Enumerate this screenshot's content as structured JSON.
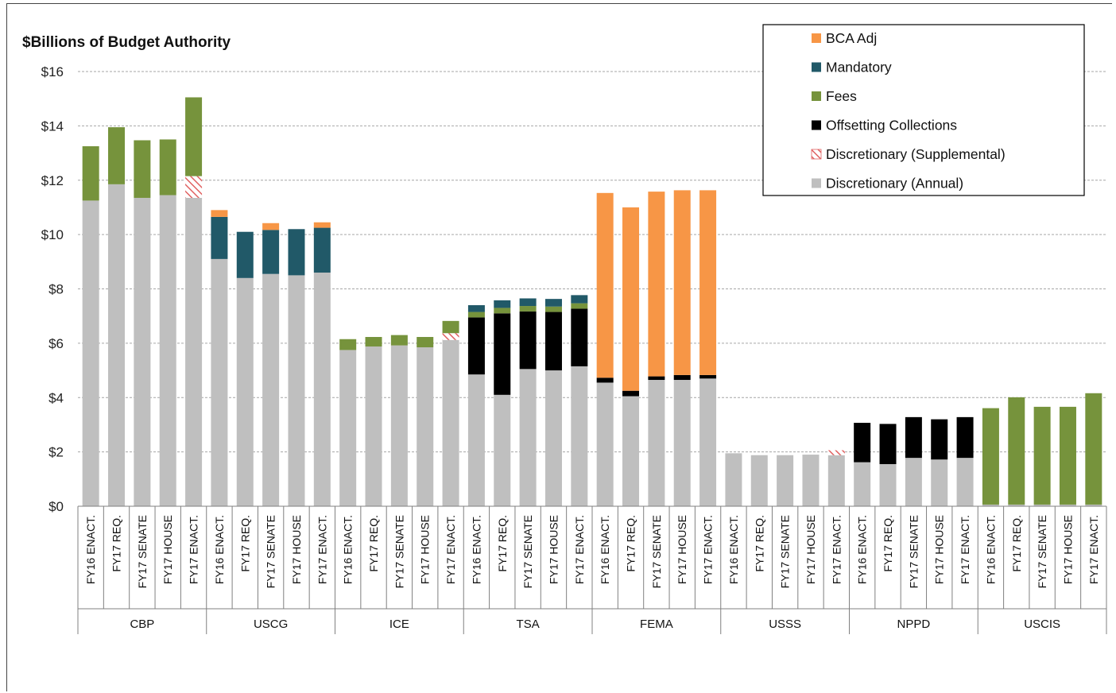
{
  "chart_data": {
    "type": "bar",
    "stacked": true,
    "ylabel": "$Billions of Budget Authority",
    "ylim": [
      0,
      16
    ],
    "yticks": [
      "$0",
      "$2",
      "$4",
      "$6",
      "$8",
      "$10",
      "$12",
      "$14",
      "$16"
    ],
    "grid": true,
    "legend_position": "top-right",
    "group_labels": [
      "CBP",
      "USCG",
      "ICE",
      "TSA",
      "FEMA",
      "USSS",
      "NPPD",
      "USCIS"
    ],
    "sub_categories": [
      "FY16 ENACT.",
      "FY17 REQ.",
      "FY17 SENATE",
      "FY17 HOUSE",
      "FY17 ENACT."
    ],
    "series": [
      {
        "name": "Discretionary (Annual)",
        "color": "#bfbfbf",
        "values": [
          [
            11.25,
            11.85,
            11.35,
            11.45,
            11.35
          ],
          [
            9.1,
            8.4,
            8.55,
            8.5,
            8.6
          ],
          [
            5.75,
            5.88,
            5.92,
            5.85,
            6.12
          ],
          [
            4.85,
            4.1,
            5.05,
            5.0,
            5.15
          ],
          [
            4.55,
            4.05,
            4.65,
            4.65,
            4.7
          ],
          [
            1.95,
            1.88,
            1.88,
            1.9,
            1.88
          ],
          [
            1.62,
            1.55,
            1.78,
            1.72,
            1.78
          ],
          [
            0.06,
            0.06,
            0.06,
            0.06,
            0.06
          ]
        ]
      },
      {
        "name": "Discretionary (Supplemental)",
        "color": "#e06060",
        "pattern": "hatch",
        "values": [
          [
            0,
            0,
            0,
            0,
            0.8
          ],
          [
            0,
            0,
            0,
            0,
            0
          ],
          [
            0,
            0,
            0,
            0,
            0.25
          ],
          [
            0,
            0,
            0,
            0,
            0
          ],
          [
            0,
            0,
            0,
            0,
            0
          ],
          [
            0,
            0,
            0,
            0,
            0.18
          ],
          [
            0,
            0,
            0,
            0,
            0
          ],
          [
            0,
            0,
            0,
            0,
            0
          ]
        ]
      },
      {
        "name": "Offsetting Collections",
        "color": "#000000",
        "values": [
          [
            0,
            0,
            0,
            0,
            0
          ],
          [
            0,
            0,
            0,
            0,
            0
          ],
          [
            0,
            0,
            0,
            0,
            0
          ],
          [
            2.1,
            3.0,
            2.12,
            2.15,
            2.12
          ],
          [
            0.18,
            0.2,
            0.13,
            0.18,
            0.13
          ],
          [
            0,
            0,
            0,
            0,
            0
          ],
          [
            1.45,
            1.48,
            1.5,
            1.48,
            1.5
          ],
          [
            0,
            0,
            0,
            0,
            0
          ]
        ]
      },
      {
        "name": "Fees",
        "color": "#76933c",
        "values": [
          [
            2.0,
            2.1,
            2.12,
            2.05,
            2.9
          ],
          [
            0,
            0,
            0,
            0,
            0
          ],
          [
            0.4,
            0.35,
            0.38,
            0.38,
            0.45
          ],
          [
            0.2,
            0.2,
            0.2,
            0.2,
            0.2
          ],
          [
            0,
            0,
            0,
            0,
            0
          ],
          [
            0,
            0,
            0,
            0,
            0
          ],
          [
            0,
            0,
            0,
            0,
            0
          ],
          [
            3.55,
            3.95,
            3.6,
            3.6,
            4.1
          ]
        ]
      },
      {
        "name": "Mandatory",
        "color": "#215968",
        "values": [
          [
            0,
            0,
            0,
            0,
            0
          ],
          [
            1.55,
            1.7,
            1.62,
            1.7,
            1.65
          ],
          [
            0,
            0,
            0,
            0,
            0
          ],
          [
            0.25,
            0.28,
            0.28,
            0.28,
            0.3
          ],
          [
            0,
            0,
            0,
            0,
            0
          ],
          [
            0,
            0,
            0,
            0,
            0
          ],
          [
            0,
            0,
            0,
            0,
            0
          ],
          [
            0,
            0,
            0,
            0,
            0
          ]
        ]
      },
      {
        "name": "BCA Adj",
        "color": "#f79646",
        "values": [
          [
            0,
            0,
            0,
            0,
            0
          ],
          [
            0.25,
            0,
            0.25,
            0,
            0.2
          ],
          [
            0,
            0,
            0,
            0,
            0
          ],
          [
            0,
            0,
            0,
            0,
            0
          ],
          [
            6.8,
            6.75,
            6.8,
            6.8,
            6.8
          ],
          [
            0,
            0,
            0,
            0,
            0
          ],
          [
            0,
            0,
            0,
            0,
            0
          ],
          [
            0,
            0,
            0,
            0,
            0
          ]
        ]
      }
    ],
    "legend_order": [
      "BCA Adj",
      "Mandatory",
      "Fees",
      "Offsetting Collections",
      "Discretionary (Supplemental)",
      "Discretionary (Annual)"
    ]
  }
}
